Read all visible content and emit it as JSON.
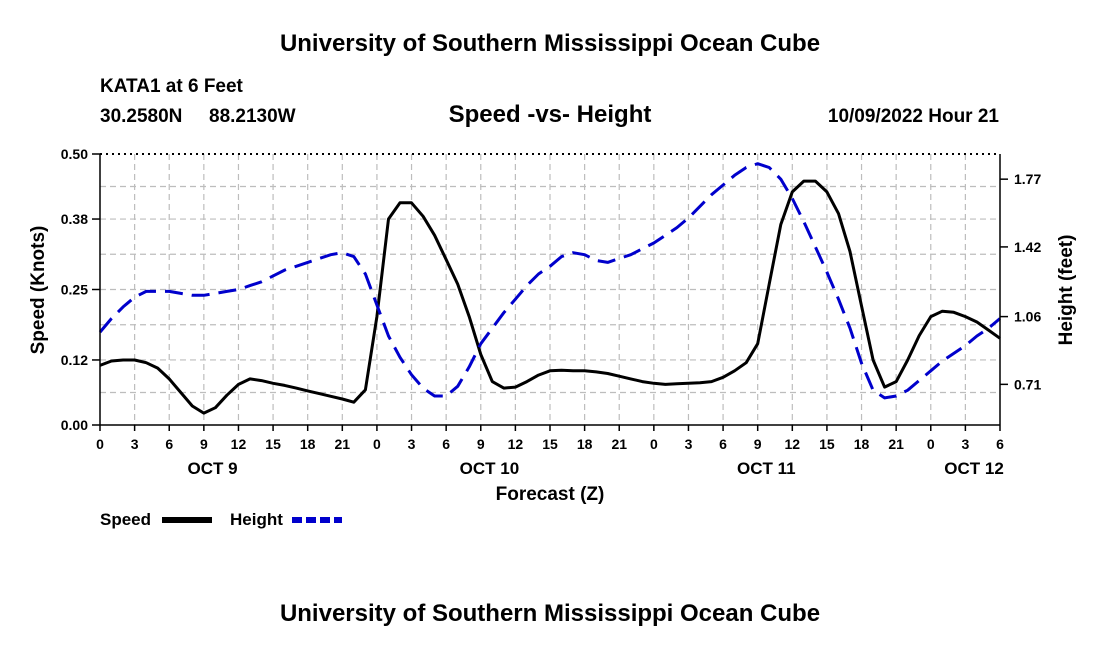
{
  "page": {
    "title": "University of Southern Mississippi Ocean Cube",
    "footer_title": "University of Southern Mississippi Ocean Cube",
    "station": "KATA1 at 6 Feet",
    "coords_lat": "30.2580N",
    "coords_lon": "88.2130W",
    "subtitle": "Speed -vs- Height",
    "issued": "10/09/2022 Hour 21"
  },
  "colors": {
    "speed": "#000000",
    "height": "#0000cc",
    "grid": "#bdbdbd"
  },
  "chart_data": {
    "type": "line",
    "title": "Speed -vs- Height",
    "xlabel": "Forecast (Z)",
    "ylabel": "Speed (Knots)",
    "y2label": "Height (feet)",
    "ylim": [
      0,
      0.5
    ],
    "y2lim": [
      0.5,
      1.9
    ],
    "xlim": [
      0,
      78
    ],
    "yticks": [
      0.0,
      0.12,
      0.25,
      0.38,
      0.5
    ],
    "ytick_labels": [
      "0.00",
      "0.12",
      "0.25",
      "0.38",
      "0.50"
    ],
    "y2ticks": [
      0.71,
      1.06,
      1.42,
      1.77
    ],
    "y2tick_labels": [
      "0.71",
      "1.06",
      "1.42",
      "1.77"
    ],
    "xtick_labels": [
      "0",
      "3",
      "6",
      "9",
      "12",
      "15",
      "18",
      "21",
      "0",
      "3",
      "6",
      "9",
      "12",
      "15",
      "18",
      "21",
      "0",
      "3",
      "6",
      "9",
      "12",
      "15",
      "18",
      "21",
      "0",
      "3",
      "6"
    ],
    "day_labels": [
      {
        "label": "OCT 9",
        "hour": 9.75
      },
      {
        "label": "OCT 10",
        "hour": 33.75
      },
      {
        "label": "OCT 11",
        "hour": 57.75
      },
      {
        "label": "OCT 12",
        "hour": 75.75
      }
    ],
    "series": [
      {
        "name": "Speed",
        "axis": "left",
        "style": "solid",
        "x": [
          0,
          1,
          2,
          3,
          4,
          5,
          6,
          7,
          8,
          9,
          10,
          11,
          12,
          13,
          14,
          15,
          16,
          17,
          18,
          19,
          20,
          21,
          22,
          23,
          24,
          25,
          26,
          27,
          28,
          29,
          30,
          31,
          32,
          33,
          34,
          35,
          36,
          37,
          38,
          39,
          40,
          41,
          42,
          43,
          44,
          45,
          46,
          47,
          48,
          49,
          50,
          51,
          52,
          53,
          54,
          55,
          56,
          57,
          58,
          59,
          60,
          61,
          62,
          63,
          64,
          65,
          66,
          67,
          68,
          69,
          70,
          71,
          72,
          73,
          74,
          75,
          76,
          77,
          78
        ],
        "values": [
          0.11,
          0.118,
          0.12,
          0.12,
          0.115,
          0.105,
          0.085,
          0.06,
          0.035,
          0.022,
          0.032,
          0.055,
          0.075,
          0.085,
          0.082,
          0.077,
          0.073,
          0.068,
          0.063,
          0.058,
          0.053,
          0.048,
          0.042,
          0.065,
          0.2,
          0.38,
          0.41,
          0.41,
          0.385,
          0.35,
          0.305,
          0.26,
          0.2,
          0.13,
          0.08,
          0.068,
          0.07,
          0.08,
          0.092,
          0.1,
          0.101,
          0.1,
          0.1,
          0.098,
          0.095,
          0.09,
          0.085,
          0.08,
          0.077,
          0.075,
          0.076,
          0.077,
          0.078,
          0.08,
          0.088,
          0.1,
          0.115,
          0.15,
          0.26,
          0.37,
          0.43,
          0.45,
          0.45,
          0.43,
          0.39,
          0.32,
          0.22,
          0.12,
          0.07,
          0.08,
          0.12,
          0.165,
          0.2,
          0.21,
          0.208,
          0.2,
          0.19,
          0.175,
          0.16
        ]
      },
      {
        "name": "Height",
        "axis": "right",
        "style": "dashed",
        "x": [
          0,
          1,
          2,
          3,
          4,
          5,
          6,
          7,
          8,
          9,
          10,
          11,
          12,
          13,
          14,
          15,
          16,
          17,
          18,
          19,
          20,
          21,
          22,
          23,
          24,
          25,
          26,
          27,
          28,
          29,
          30,
          31,
          32,
          33,
          34,
          35,
          36,
          37,
          38,
          39,
          40,
          41,
          42,
          43,
          44,
          45,
          46,
          47,
          48,
          49,
          50,
          51,
          52,
          53,
          54,
          55,
          56,
          57,
          58,
          59,
          60,
          61,
          62,
          63,
          64,
          65,
          66,
          67,
          68,
          69,
          70,
          71,
          72,
          73,
          74,
          75,
          76,
          77,
          78
        ],
        "values": [
          0.98,
          1.05,
          1.11,
          1.16,
          1.19,
          1.19,
          1.19,
          1.18,
          1.17,
          1.17,
          1.18,
          1.19,
          1.2,
          1.22,
          1.24,
          1.27,
          1.3,
          1.32,
          1.34,
          1.36,
          1.38,
          1.39,
          1.37,
          1.28,
          1.12,
          0.96,
          0.85,
          0.76,
          0.69,
          0.65,
          0.65,
          0.7,
          0.8,
          0.92,
          1.0,
          1.08,
          1.15,
          1.22,
          1.28,
          1.32,
          1.37,
          1.39,
          1.38,
          1.35,
          1.34,
          1.36,
          1.38,
          1.41,
          1.44,
          1.48,
          1.52,
          1.57,
          1.63,
          1.69,
          1.74,
          1.79,
          1.83,
          1.85,
          1.83,
          1.77,
          1.67,
          1.55,
          1.42,
          1.29,
          1.15,
          1.0,
          0.82,
          0.68,
          0.64,
          0.65,
          0.68,
          0.73,
          0.78,
          0.83,
          0.87,
          0.91,
          0.96,
          1.0,
          1.05
        ]
      }
    ],
    "legend": [
      {
        "label": "Speed",
        "style": "solid"
      },
      {
        "label": "Height",
        "style": "dashed"
      }
    ]
  }
}
